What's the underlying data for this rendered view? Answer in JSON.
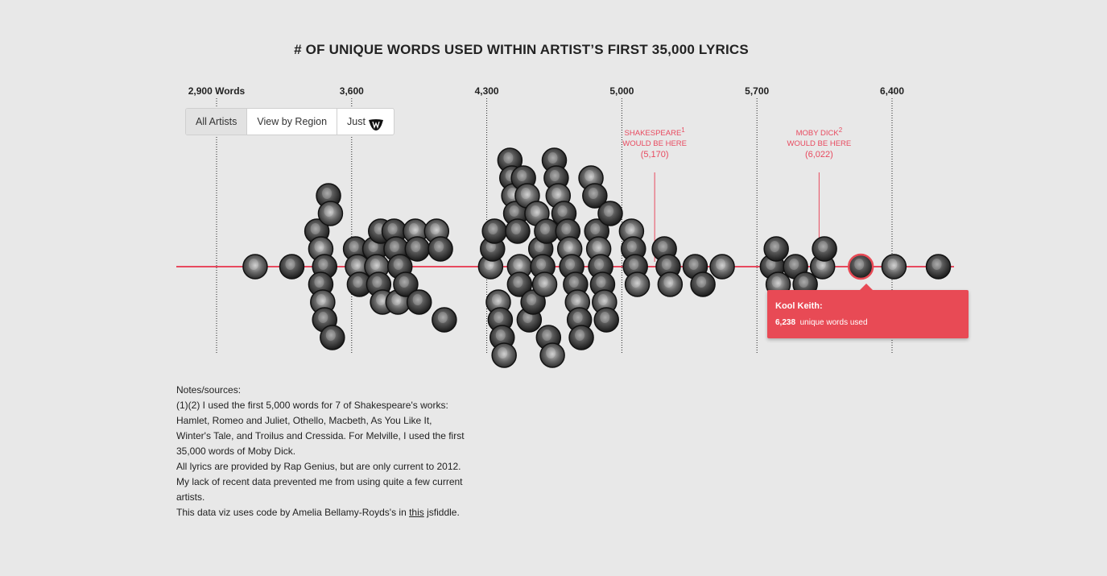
{
  "chart_data": {
    "type": "scatter",
    "title": "# OF UNIQUE WORDS USED WITHIN ARTIST’S FIRST 35,000 LYRICS",
    "x_axis_ticks": [
      "2,900 Words",
      "3,600",
      "4,300",
      "5,000",
      "5,700",
      "6,400"
    ],
    "x_tick_values": [
      2900,
      3600,
      4300,
      5000,
      5700,
      6400
    ],
    "xlim": [
      2690,
      6680
    ],
    "points": [
      {
        "x": 3100,
        "y": 0
      },
      {
        "x": 3290,
        "y": 0
      },
      {
        "x": 3420,
        "y": 2
      },
      {
        "x": 3440,
        "y": 1
      },
      {
        "x": 3460,
        "y": 0
      },
      {
        "x": 3440,
        "y": -1
      },
      {
        "x": 3450,
        "y": -2
      },
      {
        "x": 3460,
        "y": -3
      },
      {
        "x": 3480,
        "y": 4
      },
      {
        "x": 3490,
        "y": 3
      },
      {
        "x": 3500,
        "y": -4
      },
      {
        "x": 3620,
        "y": 1
      },
      {
        "x": 3630,
        "y": 0
      },
      {
        "x": 3640,
        "y": -1
      },
      {
        "x": 3720,
        "y": 1
      },
      {
        "x": 3730,
        "y": 0
      },
      {
        "x": 3740,
        "y": -1
      },
      {
        "x": 3750,
        "y": 2
      },
      {
        "x": 3760,
        "y": -2
      },
      {
        "x": 3820,
        "y": 2
      },
      {
        "x": 3830,
        "y": 1
      },
      {
        "x": 3840,
        "y": -2
      },
      {
        "x": 3850,
        "y": 0
      },
      {
        "x": 3880,
        "y": -1
      },
      {
        "x": 3930,
        "y": 2
      },
      {
        "x": 3940,
        "y": 1
      },
      {
        "x": 3950,
        "y": -2
      },
      {
        "x": 4040,
        "y": 2
      },
      {
        "x": 4060,
        "y": 1
      },
      {
        "x": 4080,
        "y": -3
      },
      {
        "x": 4320,
        "y": 0
      },
      {
        "x": 4330,
        "y": 1
      },
      {
        "x": 4340,
        "y": 2
      },
      {
        "x": 4360,
        "y": -2
      },
      {
        "x": 4370,
        "y": -3
      },
      {
        "x": 4380,
        "y": -4
      },
      {
        "x": 4390,
        "y": -5
      },
      {
        "x": 4420,
        "y": 6
      },
      {
        "x": 4430,
        "y": 5
      },
      {
        "x": 4440,
        "y": 4
      },
      {
        "x": 4450,
        "y": 3
      },
      {
        "x": 4460,
        "y": 2
      },
      {
        "x": 4470,
        "y": 0
      },
      {
        "x": 4470,
        "y": -1
      },
      {
        "x": 4490,
        "y": 5
      },
      {
        "x": 4510,
        "y": 4
      },
      {
        "x": 4520,
        "y": -3
      },
      {
        "x": 4540,
        "y": -2
      },
      {
        "x": 4560,
        "y": 3
      },
      {
        "x": 4580,
        "y": 1
      },
      {
        "x": 4590,
        "y": 0
      },
      {
        "x": 4600,
        "y": -1
      },
      {
        "x": 4610,
        "y": 2
      },
      {
        "x": 4620,
        "y": -4
      },
      {
        "x": 4640,
        "y": -5
      },
      {
        "x": 4650,
        "y": 6
      },
      {
        "x": 4660,
        "y": 5
      },
      {
        "x": 4670,
        "y": 4
      },
      {
        "x": 4700,
        "y": 3
      },
      {
        "x": 4720,
        "y": 2
      },
      {
        "x": 4730,
        "y": 1
      },
      {
        "x": 4740,
        "y": 0
      },
      {
        "x": 4760,
        "y": -1
      },
      {
        "x": 4770,
        "y": -2
      },
      {
        "x": 4780,
        "y": -3
      },
      {
        "x": 4790,
        "y": -4
      },
      {
        "x": 4840,
        "y": 5
      },
      {
        "x": 4860,
        "y": 4
      },
      {
        "x": 4870,
        "y": 2
      },
      {
        "x": 4880,
        "y": 1
      },
      {
        "x": 4890,
        "y": 0
      },
      {
        "x": 4900,
        "y": -1
      },
      {
        "x": 4910,
        "y": -2
      },
      {
        "x": 4920,
        "y": -3
      },
      {
        "x": 4940,
        "y": 3
      },
      {
        "x": 5050,
        "y": 2
      },
      {
        "x": 5060,
        "y": 1
      },
      {
        "x": 5070,
        "y": 0
      },
      {
        "x": 5080,
        "y": -1
      },
      {
        "x": 5220,
        "y": 1
      },
      {
        "x": 5240,
        "y": 0
      },
      {
        "x": 5250,
        "y": -1
      },
      {
        "x": 5380,
        "y": 0
      },
      {
        "x": 5420,
        "y": -1
      },
      {
        "x": 5520,
        "y": 0
      },
      {
        "x": 5780,
        "y": 0
      },
      {
        "x": 5800,
        "y": 1
      },
      {
        "x": 5810,
        "y": -1
      },
      {
        "x": 5900,
        "y": 0
      },
      {
        "x": 5950,
        "y": -1
      },
      {
        "x": 6040,
        "y": 0
      },
      {
        "x": 6050,
        "y": 1
      },
      {
        "x": 6238,
        "y": 0
      },
      {
        "x": 6410,
        "y": 0
      },
      {
        "x": 6640,
        "y": 0
      }
    ],
    "annotations": [
      {
        "lines": [
          "SHAKESPEARE",
          "WOULD BE HERE",
          "(5,170)"
        ],
        "superscript": "1",
        "x": 5170
      },
      {
        "lines": [
          "MOBY DICK",
          "WOULD BE HERE",
          "(6,022)"
        ],
        "superscript": "2",
        "x": 6022
      }
    ],
    "highlight_x": 6238,
    "colors": {
      "baseline": "#e84a5f",
      "annotation": "#e84a5f",
      "highlight": "#e84a55"
    }
  },
  "filter": {
    "all": "All Artists",
    "region": "View by Region",
    "just": "Just",
    "just_icon": "wu-tang-logo-icon"
  },
  "tooltip": {
    "name": "Kool Keith:",
    "value": "6,238",
    "suffix": "unique words used"
  },
  "notes": {
    "heading": "Notes/sources:",
    "p1": "(1)(2) I used the first 5,000 words for 7 of Shakespeare's works: Hamlet, Romeo and Juliet, Othello, Macbeth, As You Like It, Winter's Tale, and Troilus and Cressida. For Melville, I used the first 35,000 words of Moby Dick.",
    "p2": "All lyrics are provided by Rap Genius, but are only current to 2012. My lack of recent data prevented me from using quite a few current artists.",
    "p3_pre": "This data viz uses code by Amelia Bellamy-Royds's in ",
    "p3_link": "this",
    "p3_post": " jsfiddle."
  }
}
